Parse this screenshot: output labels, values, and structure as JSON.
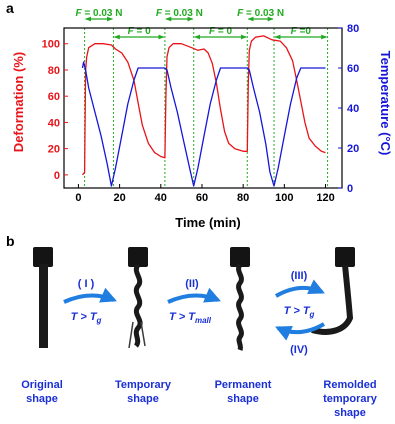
{
  "panel_a_label": "a",
  "panel_b_label": "b",
  "chart_data": {
    "type": "line",
    "xlabel": "Time (min)",
    "ylabel_left": "Deformation (%)",
    "ylabel_right": "Temperature (°C)",
    "xlim": [
      -7,
      128
    ],
    "ylim_left": [
      -10,
      112
    ],
    "ylim_right": [
      0,
      80
    ],
    "xticks": [
      0,
      20,
      40,
      60,
      80,
      100,
      120
    ],
    "yticks_left": [
      0,
      20,
      40,
      60,
      80,
      100
    ],
    "yticks_right": [
      0,
      20,
      40,
      60,
      80
    ],
    "grid": false,
    "colors": {
      "deformation": "#e8141a",
      "temperature": "#1616d8",
      "annotation": "#22aa22"
    },
    "annotations": [
      {
        "text_prefix": "F",
        "text_value": " = 0.03 N",
        "x_start": 3,
        "x_end": 17
      },
      {
        "text_prefix": "F",
        "text_value": " = 0",
        "x_start": 17,
        "x_end": 42
      },
      {
        "text_prefix": "F",
        "text_value": " = 0.03 N",
        "x_start": 42,
        "x_end": 56
      },
      {
        "text_prefix": "F",
        "text_value": " = 0",
        "x_start": 56,
        "x_end": 82
      },
      {
        "text_prefix": "F",
        "text_value": " = 0.03 N",
        "x_start": 82,
        "x_end": 95
      },
      {
        "text_prefix": "F",
        "text_value": " =0",
        "x_start": 95,
        "x_end": 121
      }
    ],
    "series": [
      {
        "key": "deformation",
        "axis": "left",
        "points": [
          [
            2,
            0
          ],
          [
            3,
            2
          ],
          [
            3.5,
            80
          ],
          [
            4,
            90
          ],
          [
            5,
            97
          ],
          [
            8,
            100
          ],
          [
            12,
            100
          ],
          [
            16,
            99
          ],
          [
            18,
            96
          ],
          [
            21,
            93
          ],
          [
            24,
            86
          ],
          [
            27,
            72
          ],
          [
            29,
            55
          ],
          [
            31,
            38
          ],
          [
            34,
            24
          ],
          [
            37,
            17
          ],
          [
            40,
            14
          ],
          [
            42,
            13
          ],
          [
            42.5,
            60
          ],
          [
            43,
            90
          ],
          [
            44,
            97
          ],
          [
            46,
            100
          ],
          [
            50,
            100
          ],
          [
            55,
            97
          ],
          [
            58,
            95
          ],
          [
            61,
            96
          ],
          [
            63,
            93
          ],
          [
            65,
            85
          ],
          [
            67,
            70
          ],
          [
            69,
            50
          ],
          [
            71,
            33
          ],
          [
            73,
            24
          ],
          [
            76,
            20
          ],
          [
            80,
            18
          ],
          [
            82,
            18
          ],
          [
            82.5,
            70
          ],
          [
            83,
            95
          ],
          [
            84,
            102
          ],
          [
            86,
            105
          ],
          [
            90,
            106
          ],
          [
            94,
            103
          ],
          [
            98,
            102
          ],
          [
            101,
            97
          ],
          [
            104,
            87
          ],
          [
            106,
            72
          ],
          [
            108,
            56
          ],
          [
            110,
            40
          ],
          [
            112,
            28
          ],
          [
            115,
            22
          ],
          [
            118,
            18
          ],
          [
            120,
            17
          ]
        ]
      },
      {
        "key": "temperature",
        "axis": "right",
        "points": [
          [
            2,
            60
          ],
          [
            2.5,
            63
          ],
          [
            3,
            61
          ],
          [
            3.5,
            59
          ],
          [
            5,
            50
          ],
          [
            8,
            38
          ],
          [
            11,
            26
          ],
          [
            14,
            12
          ],
          [
            16,
            1
          ],
          [
            18,
            10
          ],
          [
            21,
            26
          ],
          [
            24,
            42
          ],
          [
            27,
            54
          ],
          [
            29,
            60
          ],
          [
            32,
            60
          ],
          [
            36,
            60
          ],
          [
            40,
            60
          ],
          [
            42,
            60
          ],
          [
            43,
            59
          ],
          [
            45,
            50
          ],
          [
            48,
            38
          ],
          [
            51,
            24
          ],
          [
            54,
            10
          ],
          [
            56,
            1
          ],
          [
            58,
            10
          ],
          [
            61,
            26
          ],
          [
            64,
            42
          ],
          [
            67,
            54
          ],
          [
            69,
            60
          ],
          [
            74,
            60
          ],
          [
            78,
            60
          ],
          [
            82,
            60
          ],
          [
            83,
            59
          ],
          [
            85,
            50
          ],
          [
            88,
            38
          ],
          [
            91,
            22
          ],
          [
            93,
            8
          ],
          [
            95,
            1
          ],
          [
            97,
            10
          ],
          [
            100,
            26
          ],
          [
            103,
            42
          ],
          [
            106,
            55
          ],
          [
            108,
            60
          ],
          [
            112,
            60
          ],
          [
            116,
            60
          ],
          [
            120,
            60
          ]
        ]
      }
    ]
  },
  "panel_b": {
    "steps": [
      {
        "roman": "( I )",
        "condition_base": "T > T",
        "condition_sub": "g"
      },
      {
        "roman": "(II)",
        "condition_base": "T > T",
        "condition_sub": "mall"
      },
      {
        "roman": "(III)",
        "condition_base": "T > T",
        "condition_sub": "g"
      },
      {
        "roman": "(IV)"
      }
    ],
    "captions": [
      {
        "line1": "Original",
        "line2": "shape"
      },
      {
        "line1": "Temporary",
        "line2": "shape"
      },
      {
        "line1": "Permanent",
        "line2": "shape"
      },
      {
        "line1": "Remolded",
        "line2": "temporary",
        "line3": "shape"
      }
    ],
    "colors": {
      "text": "#1a2fd6",
      "arrow": "#1f7ee0",
      "sample": "#141414"
    }
  }
}
